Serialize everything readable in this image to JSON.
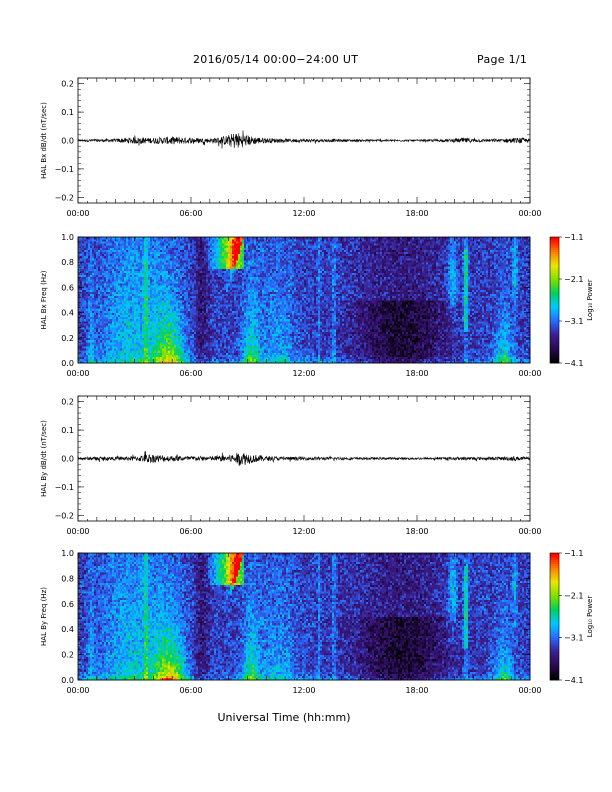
{
  "header": {
    "title": "2016/05/14  00:00−24:00 UT",
    "page": "Page 1/1"
  },
  "footer": {
    "xlabel": "Universal Time (hh:mm)"
  },
  "colors": {
    "colormap": [
      "#000000",
      "#2a0a52",
      "#3b1f8f",
      "#2a6aff",
      "#00c8ff",
      "#00d060",
      "#7ee000",
      "#e8e800",
      "#ff8000",
      "#ff0000"
    ],
    "trace": "#000000"
  },
  "chart_data": [
    {
      "type": "line",
      "ylabel": "HAL Bx dB/dt (nT/sec)",
      "ylim": [
        -0.22,
        0.22
      ],
      "yticks": [
        -0.2,
        -0.1,
        0.0,
        0.1,
        0.2
      ],
      "ytick_labels": [
        "−0.2",
        "−0.1",
        "0.0",
        "0.1",
        "0.2"
      ],
      "xlim": [
        0,
        24
      ],
      "xtick_labels": [
        "00:00",
        "06:00",
        "12:00",
        "18:00",
        "00:00"
      ],
      "series": [
        {
          "x": [
            0,
            1,
            2,
            3,
            4,
            5,
            6,
            7,
            7.5,
            8,
            8.4,
            8.8,
            9.2,
            9.6,
            10,
            11,
            12,
            13,
            14,
            15,
            16,
            17,
            18,
            19,
            20,
            20.5,
            21,
            22,
            23,
            23.5,
            24
          ],
          "amplitude": [
            0.004,
            0.005,
            0.006,
            0.012,
            0.01,
            0.014,
            0.01,
            0.008,
            0.012,
            0.02,
            0.032,
            0.022,
            0.016,
            0.012,
            0.009,
            0.006,
            0.006,
            0.005,
            0.005,
            0.004,
            0.004,
            0.003,
            0.003,
            0.004,
            0.006,
            0.01,
            0.006,
            0.005,
            0.008,
            0.01,
            0.006
          ]
        }
      ]
    },
    {
      "type": "heatmap",
      "ylabel": "HAL Bx Freq (Hz)",
      "ylim": [
        0,
        1.0
      ],
      "yticks": [
        0.0,
        0.2,
        0.4,
        0.6,
        0.8,
        1.0
      ],
      "ytick_labels": [
        "0.0",
        "0.2",
        "0.4",
        "0.6",
        "0.8",
        "1.0"
      ],
      "xlim": [
        0,
        24
      ],
      "xtick_labels": [
        "00:00",
        "06:00",
        "12:00",
        "18:00",
        "00:00"
      ],
      "colorbar": {
        "label": "Log₁₀ Power",
        "range": [
          -4.1,
          -1.1
        ],
        "ticks": [
          -4.1,
          -3.1,
          -2.1,
          -1.1
        ],
        "tick_labels": [
          "−4.1",
          "−3.1",
          "−2.1",
          "−1.1"
        ]
      }
    },
    {
      "type": "line",
      "ylabel": "HAL By dB/dt (nT/sec)",
      "ylim": [
        -0.22,
        0.22
      ],
      "yticks": [
        -0.2,
        -0.1,
        0.0,
        0.1,
        0.2
      ],
      "ytick_labels": [
        "−0.2",
        "−0.1",
        "0.0",
        "0.1",
        "0.2"
      ],
      "xlim": [
        0,
        24
      ],
      "xtick_labels": [
        "00:00",
        "06:00",
        "12:00",
        "18:00",
        "00:00"
      ],
      "series": [
        {
          "x": [
            0,
            1,
            2,
            3,
            3.8,
            4.5,
            5,
            6,
            7,
            8,
            8.4,
            8.8,
            9.2,
            9.6,
            10,
            11,
            12,
            13,
            14,
            15,
            16,
            17,
            18,
            19,
            20,
            20.5,
            21,
            22,
            23,
            23.5,
            24
          ],
          "amplitude": [
            0.005,
            0.006,
            0.006,
            0.008,
            0.016,
            0.012,
            0.01,
            0.008,
            0.008,
            0.012,
            0.02,
            0.024,
            0.016,
            0.012,
            0.008,
            0.006,
            0.006,
            0.005,
            0.005,
            0.004,
            0.004,
            0.004,
            0.004,
            0.004,
            0.005,
            0.006,
            0.005,
            0.005,
            0.008,
            0.007,
            0.005
          ]
        }
      ]
    },
    {
      "type": "heatmap",
      "ylabel": "HAL By Freq (Hz)",
      "ylim": [
        0,
        1.0
      ],
      "yticks": [
        0.0,
        0.2,
        0.4,
        0.6,
        0.8,
        1.0
      ],
      "ytick_labels": [
        "0.0",
        "0.2",
        "0.4",
        "0.6",
        "0.8",
        "1.0"
      ],
      "xlim": [
        0,
        24
      ],
      "xtick_labels": [
        "00:00",
        "06:00",
        "12:00",
        "18:00",
        "00:00"
      ],
      "colorbar": {
        "label": "Log₁₀ Power",
        "range": [
          -4.1,
          -1.1
        ],
        "ticks": [
          -4.1,
          -3.1,
          -2.1,
          -1.1
        ],
        "tick_labels": [
          "−4.1",
          "−3.1",
          "−2.1",
          "−1.1"
        ]
      }
    }
  ]
}
